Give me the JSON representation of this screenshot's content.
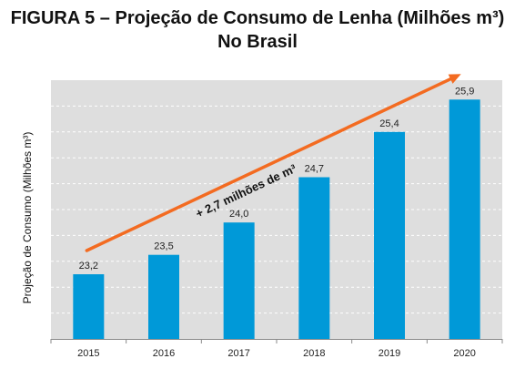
{
  "figure": {
    "title_line_1": "FIGURA 5 – Projeção de Consumo de Lenha (Milhões m³)",
    "title_line_2": "No Brasil"
  },
  "chart_data": {
    "type": "bar",
    "title": "FIGURA 5 – Projeção de Consumo de Lenha (Milhões m³) No Brasil",
    "xlabel": "",
    "ylabel": "Projeção de Consumo (Milhões m³)",
    "categories": [
      "2015",
      "2016",
      "2017",
      "2018",
      "2019",
      "2020"
    ],
    "values": [
      23.2,
      23.5,
      24.0,
      24.7,
      25.4,
      25.9
    ],
    "data_labels": [
      "23,2",
      "23,5",
      "24,0",
      "24,7",
      "25,4",
      "25,9"
    ],
    "ylim": [
      22.2,
      26.2
    ],
    "grid": true,
    "bar_color": "#0099d8",
    "plot_background": "#dedede",
    "annotation": {
      "text": "+ 2,7 milhões de m³",
      "arrow_color": "#f36b21"
    }
  }
}
